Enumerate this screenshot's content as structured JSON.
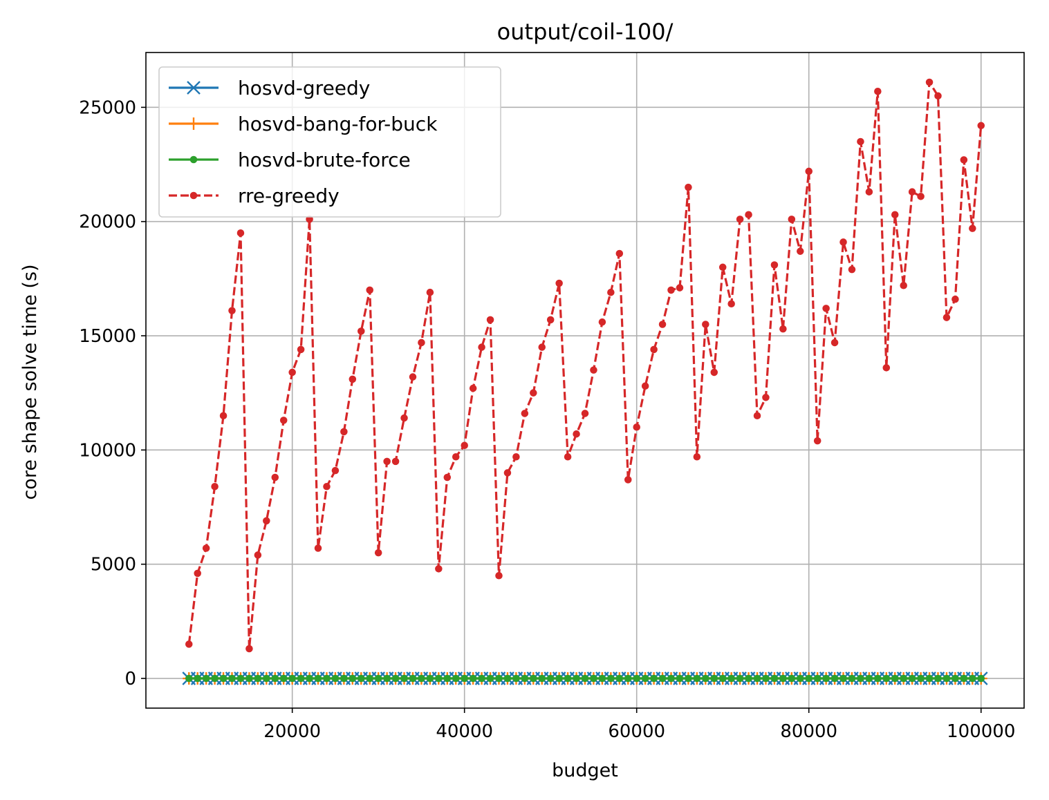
{
  "chart_data": {
    "type": "line",
    "title": "output/coil-100/",
    "xlabel": "budget",
    "ylabel": "core shape solve time (s)",
    "xlim": [
      3000,
      105000
    ],
    "ylim": [
      -1300,
      27400
    ],
    "xticks": [
      20000,
      40000,
      60000,
      80000,
      100000
    ],
    "yticks": [
      0,
      5000,
      10000,
      15000,
      20000,
      25000
    ],
    "grid": true,
    "legend_position": "upper-left",
    "x": [
      8000,
      9000,
      10000,
      11000,
      12000,
      13000,
      14000,
      15000,
      16000,
      17000,
      18000,
      19000,
      20000,
      21000,
      22000,
      23000,
      24000,
      25000,
      26000,
      27000,
      28000,
      29000,
      30000,
      31000,
      32000,
      33000,
      34000,
      35000,
      36000,
      37000,
      38000,
      39000,
      40000,
      41000,
      42000,
      43000,
      44000,
      45000,
      46000,
      47000,
      48000,
      49000,
      50000,
      51000,
      52000,
      53000,
      54000,
      55000,
      56000,
      57000,
      58000,
      59000,
      60000,
      61000,
      62000,
      63000,
      64000,
      65000,
      66000,
      67000,
      68000,
      69000,
      70000,
      71000,
      72000,
      73000,
      74000,
      75000,
      76000,
      77000,
      78000,
      79000,
      80000,
      81000,
      82000,
      83000,
      84000,
      85000,
      86000,
      87000,
      88000,
      89000,
      90000,
      91000,
      92000,
      93000,
      94000,
      95000,
      96000,
      97000,
      98000,
      99000,
      100000
    ],
    "series": [
      {
        "name": "hosvd-greedy",
        "color": "#1f77b4",
        "marker": "x",
        "linestyle": "solid",
        "constant": 0
      },
      {
        "name": "hosvd-bang-for-buck",
        "color": "#ff7f0e",
        "marker": "plus",
        "linestyle": "solid",
        "constant": 0
      },
      {
        "name": "hosvd-brute-force",
        "color": "#2ca02c",
        "marker": "dot",
        "linestyle": "solid",
        "constant": 0
      },
      {
        "name": "rre-greedy",
        "color": "#d62728",
        "marker": "dot",
        "linestyle": "dashed",
        "values": [
          1500,
          4600,
          5700,
          8400,
          11500,
          16100,
          19500,
          1300,
          5400,
          6900,
          8800,
          11300,
          13400,
          14400,
          20100,
          5700,
          8400,
          9100,
          10800,
          13100,
          15200,
          17000,
          5500,
          9500,
          9500,
          11400,
          13200,
          14700,
          16900,
          4800,
          8800,
          9700,
          10200,
          12700,
          14500,
          15700,
          4500,
          9000,
          9700,
          11600,
          12500,
          14500,
          15700,
          17300,
          9700,
          10700,
          11600,
          13500,
          15600,
          16900,
          18600,
          8700,
          11000,
          12800,
          14400,
          15500,
          17000,
          17100,
          21500,
          9700,
          15500,
          13400,
          18000,
          16400,
          20100,
          20300,
          11500,
          12300,
          18100,
          15300,
          20100,
          18700,
          22200,
          10400,
          16200,
          14700,
          19100,
          17900,
          23500,
          21300,
          25700,
          13600,
          20300,
          17200,
          21300,
          21100,
          26100,
          25500,
          15800,
          16600,
          22700,
          19700,
          24200
        ]
      }
    ]
  }
}
